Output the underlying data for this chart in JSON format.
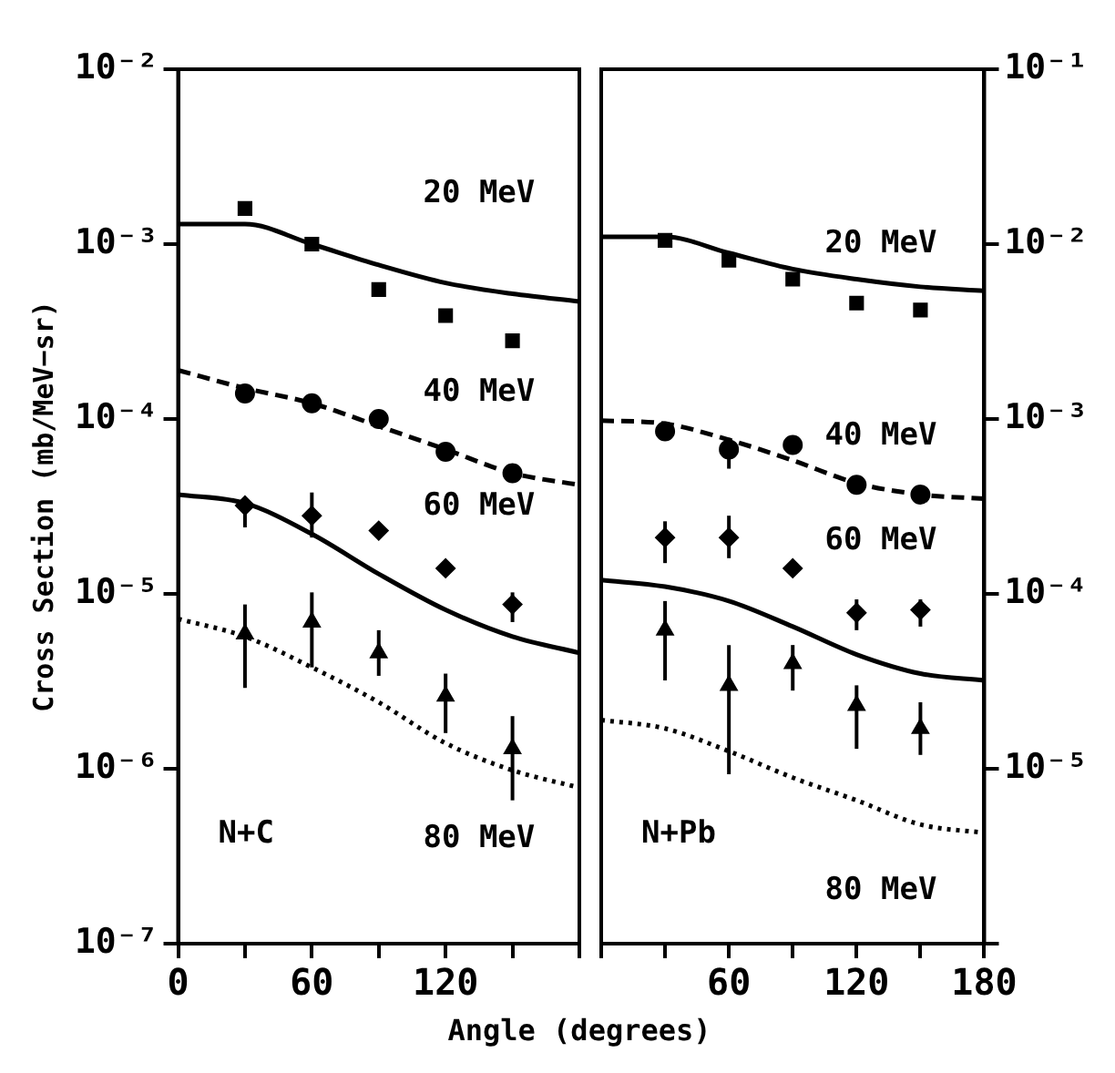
{
  "chart_data": [
    {
      "type": "scatter",
      "title": "N+C",
      "xlabel": "Angle (degrees)",
      "ylabel": "Cross Section (mb/MeV−sr)",
      "xlim": [
        0,
        180
      ],
      "xticks": [
        0,
        {
          "value": 30,
          "label": null
        },
        60,
        {
          "value": 90,
          "label": null
        },
        120,
        {
          "value": 150,
          "label": null
        },
        {
          "value": 180,
          "label": null
        }
      ],
      "ylim": [
        1e-07,
        0.01
      ],
      "yticks": [
        {
          "value": 1e-07,
          "label": "10⁻⁷"
        },
        {
          "value": 1e-06,
          "label": "10⁻⁶"
        },
        {
          "value": 1e-05,
          "label": "10⁻⁵"
        },
        {
          "value": 0.0001,
          "label": "10⁻⁴"
        },
        {
          "value": 0.001,
          "label": "10⁻³"
        },
        {
          "value": 0.01,
          "label": "10⁻²"
        }
      ],
      "log": "y",
      "grid": false,
      "legend": false,
      "annotations": [
        "20 MeV",
        "40 MeV",
        "60 MeV",
        "80 MeV"
      ],
      "series": [
        {
          "marker": "square",
          "color": "#000000",
          "x": [
            30,
            60,
            90,
            120,
            150
          ],
          "values": [
            0.0016,
            0.001,
            0.00055,
            0.00039,
            0.00028
          ]
        },
        {
          "marker": "circle",
          "color": "#000000",
          "x": [
            30,
            60,
            90,
            120,
            150
          ],
          "values": [
            0.00014,
            0.000123,
            0.0001,
            6.5e-05,
            4.9e-05
          ]
        },
        {
          "marker": "diamond",
          "color": "#000000",
          "x": [
            30,
            60,
            90,
            120,
            150
          ],
          "values": [
            3.2e-05,
            2.8e-05,
            2.3e-05,
            1.4e-05,
            8.7e-06
          ],
          "errors": [
            [
              2.4e-05,
              3.5e-05
            ],
            [
              2.1e-05,
              3.8e-05
            ],
            null,
            null,
            [
              6.9e-06,
              1.02e-05
            ]
          ]
        },
        {
          "marker": "triangle",
          "color": "#000000",
          "x": [
            30,
            60,
            90,
            120,
            150
          ],
          "values": [
            5.9e-06,
            6.9e-06,
            4.6e-06,
            2.6e-06,
            1.3e-06
          ],
          "errors": [
            [
              2.9e-06,
              8.7e-06
            ],
            [
              3.8e-06,
              1.02e-05
            ],
            [
              3.4e-06,
              6.2e-06
            ],
            [
              1.6e-06,
              3.5e-06
            ],
            [
              6.6e-07,
              2e-06
            ]
          ]
        },
        {
          "type": "line",
          "line_style": "solid",
          "marker": "none",
          "color": "#000000",
          "x": [
            0,
            30,
            60,
            90,
            120,
            150,
            180
          ],
          "values": [
            0.0013,
            0.0013,
            0.001,
            0.00076,
            0.0006,
            0.00052,
            0.00047
          ]
        },
        {
          "type": "line",
          "line_style": "dashed",
          "marker": "none",
          "color": "#000000",
          "x": [
            0,
            30,
            60,
            90,
            120,
            150,
            180
          ],
          "values": [
            0.00019,
            0.00015,
            0.000123,
            9.1e-05,
            6.7e-05,
            4.9e-05,
            4.2e-05
          ]
        },
        {
          "type": "line",
          "line_style": "solid",
          "marker": "none",
          "color": "#000000",
          "x": [
            0,
            30,
            60,
            90,
            120,
            150,
            180
          ],
          "values": [
            3.7e-05,
            3.3e-05,
            2.2e-05,
            1.3e-05,
            8.1e-06,
            5.7e-06,
            4.6e-06
          ]
        },
        {
          "type": "line",
          "line_style": "dotted",
          "marker": "none",
          "color": "#000000",
          "x": [
            0,
            30,
            60,
            90,
            120,
            150,
            180
          ],
          "values": [
            7.2e-06,
            5.7e-06,
            3.8e-06,
            2.4e-06,
            1.4e-06,
            9.8e-07,
            7.8e-07
          ]
        }
      ]
    },
    {
      "type": "scatter",
      "title": "N+Pb",
      "xlim": [
        0,
        180
      ],
      "xticks": [
        {
          "value": 0,
          "label": null
        },
        {
          "value": 30,
          "label": null
        },
        60,
        {
          "value": 90,
          "label": null
        },
        120,
        {
          "value": 150,
          "label": null
        },
        180
      ],
      "y2lim": [
        1e-06,
        0.1
      ],
      "y2ticks": [
        {
          "value": 1e-06,
          "label": null
        },
        {
          "value": 1e-05,
          "label": "10⁻⁵"
        },
        {
          "value": 0.0001,
          "label": "10⁻⁴"
        },
        {
          "value": 0.001,
          "label": "10⁻³"
        },
        {
          "value": 0.01,
          "label": "10⁻²"
        },
        {
          "value": 0.1,
          "label": "10⁻¹"
        }
      ],
      "log": "y2",
      "grid": false,
      "legend": false,
      "annotations": [
        "20 MeV",
        "40 MeV",
        "60 MeV",
        "80 MeV"
      ],
      "series": [
        {
          "axis": "y2",
          "marker": "square",
          "color": "#000000",
          "x": [
            30,
            60,
            90,
            120,
            150
          ],
          "values": [
            0.0105,
            0.0081,
            0.0063,
            0.0046,
            0.0042
          ]
        },
        {
          "axis": "y2",
          "marker": "circle",
          "color": "#000000",
          "x": [
            30,
            60,
            90,
            120,
            150
          ],
          "values": [
            0.00085,
            0.00067,
            0.00071,
            0.00042,
            0.00037
          ],
          "errors": [
            null,
            [
              0.00052,
              0.00078
            ],
            null,
            null,
            null
          ]
        },
        {
          "axis": "y2",
          "marker": "diamond",
          "color": "#000000",
          "x": [
            30,
            60,
            90,
            120,
            150
          ],
          "values": [
            0.00021,
            0.00021,
            0.00014,
            7.8e-05,
            8.1e-05
          ],
          "errors": [
            [
              0.00015,
              0.00026
            ],
            [
              0.00016,
              0.00028
            ],
            null,
            [
              6.2e-05,
              9.3e-05
            ],
            [
              6.5e-05,
              9.3e-05
            ]
          ]
        },
        {
          "axis": "y2",
          "marker": "triangle",
          "color": "#000000",
          "x": [
            30,
            60,
            90,
            120,
            150
          ],
          "values": [
            6.2e-05,
            3e-05,
            4e-05,
            2.3e-05,
            1.7e-05
          ],
          "errors": [
            [
              3.2e-05,
              9.1e-05
            ],
            [
              9.3e-06,
              5.1e-05
            ],
            [
              2.8e-05,
              5.1e-05
            ],
            [
              1.3e-05,
              3e-05
            ],
            [
              1.2e-05,
              2.4e-05
            ]
          ]
        },
        {
          "type": "line",
          "axis": "y2",
          "line_style": "solid",
          "marker": "none",
          "color": "#000000",
          "x": [
            0,
            30,
            60,
            90,
            120,
            150,
            180
          ],
          "values": [
            0.011,
            0.011,
            0.0089,
            0.0072,
            0.0063,
            0.0057,
            0.0054
          ]
        },
        {
          "type": "line",
          "axis": "y2",
          "line_style": "dashed",
          "marker": "none",
          "color": "#000000",
          "x": [
            0,
            30,
            60,
            90,
            120,
            150,
            180
          ],
          "values": [
            0.00098,
            0.00094,
            0.00076,
            0.00058,
            0.00043,
            0.00037,
            0.00035
          ]
        },
        {
          "type": "line",
          "axis": "y2",
          "line_style": "solid",
          "marker": "none",
          "color": "#000000",
          "x": [
            0,
            30,
            60,
            90,
            120,
            150,
            180
          ],
          "values": [
            0.00012,
            0.00011,
            9.1e-05,
            6.5e-05,
            4.5e-05,
            3.5e-05,
            3.2e-05
          ]
        },
        {
          "type": "line",
          "axis": "y2",
          "line_style": "dotted",
          "marker": "none",
          "color": "#000000",
          "x": [
            0,
            30,
            60,
            90,
            120,
            150,
            180
          ],
          "values": [
            1.9e-05,
            1.7e-05,
            1.26e-05,
            8.9e-06,
            6.6e-06,
            4.8e-06,
            4.3e-06
          ]
        }
      ]
    }
  ]
}
